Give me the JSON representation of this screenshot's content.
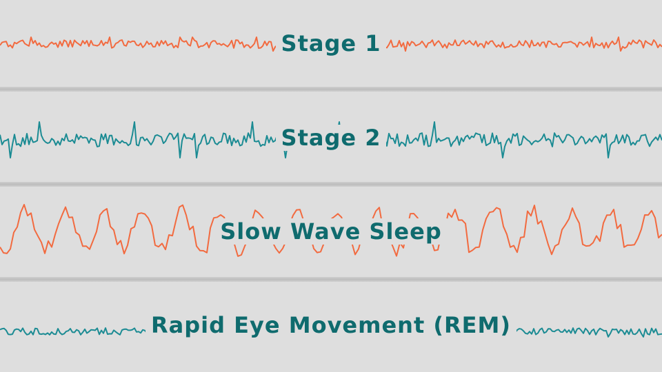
{
  "colors": {
    "background": "#dedede",
    "label_text": "#0f6b6e",
    "orange_wave": "#f26a3f",
    "teal_wave": "#1b8b93"
  },
  "panels": [
    {
      "label": "Stage 1",
      "wave_color": "orange_wave",
      "amplitude_level": "low"
    },
    {
      "label": "Stage 2",
      "wave_color": "teal_wave",
      "amplitude_level": "medium with spikes"
    },
    {
      "label": "Slow Wave Sleep",
      "wave_color": "orange_wave",
      "amplitude_level": "high"
    },
    {
      "label": "Rapid Eye Movement (REM)",
      "wave_color": "teal_wave",
      "amplitude_level": "low"
    }
  ]
}
